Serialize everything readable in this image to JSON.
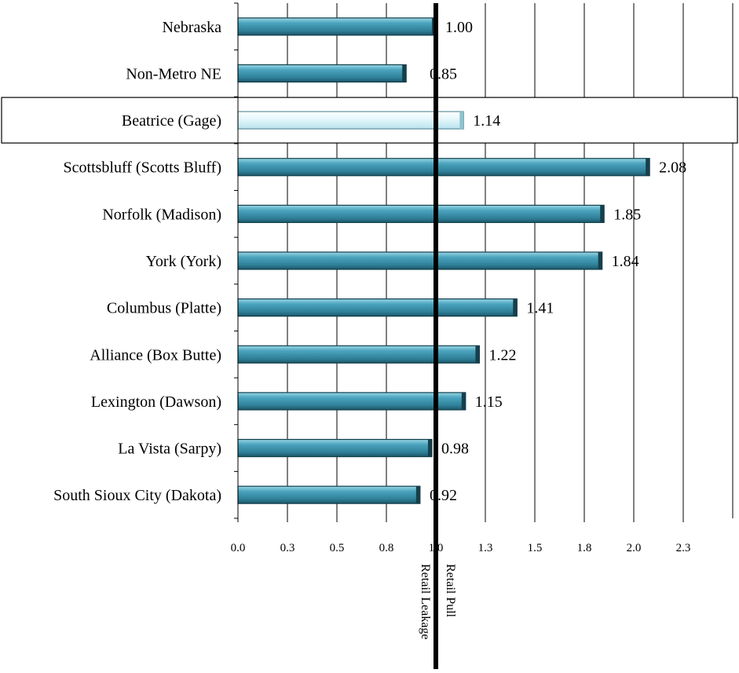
{
  "chart_data": {
    "type": "bar",
    "orientation": "horizontal",
    "categories": [
      "Nebraska",
      "Non-Metro NE",
      "Beatrice (Gage)",
      "Scottsbluff (Scotts Bluff)",
      "Norfolk (Madison)",
      "York (York)",
      "Columbus (Platte)",
      "Alliance (Box Butte)",
      "Lexington (Dawson)",
      "La Vista (Sarpy)",
      "South Sioux City (Dakota)"
    ],
    "values": [
      1.0,
      0.85,
      1.14,
      2.08,
      1.85,
      1.84,
      1.41,
      1.22,
      1.15,
      0.98,
      0.92
    ],
    "value_labels": [
      "1.00",
      "0.85",
      "1.14",
      "2.08",
      "1.85",
      "1.84",
      "1.41",
      "1.22",
      "1.15",
      "0.98",
      "0.92"
    ],
    "highlighted_category": "Beatrice (Gage)",
    "xlim": [
      0,
      2.5
    ],
    "x_ticks": [
      0,
      0.25,
      0.5,
      0.75,
      1.0,
      1.25,
      1.5,
      1.75,
      2.0,
      2.25
    ],
    "x_tick_labels": [
      "0.0",
      "0.3",
      "0.5",
      "0.8",
      "1.0",
      "1.3",
      "1.5",
      "1.8",
      "2.0",
      "2.3"
    ],
    "reference_line": 1.0,
    "reference_labels": {
      "left": "Retail Leakage",
      "right": "Retail Pull"
    },
    "grid": "vertical",
    "title": "",
    "xlabel": "",
    "ylabel": "",
    "colors": {
      "bar": "#3a8fa9",
      "bar_light": "#7cc7dc",
      "bar_dark": "#1f5d70",
      "highlight_bar": "#d9f2f8",
      "reference_line": "#000000",
      "grid": "#000000"
    }
  }
}
